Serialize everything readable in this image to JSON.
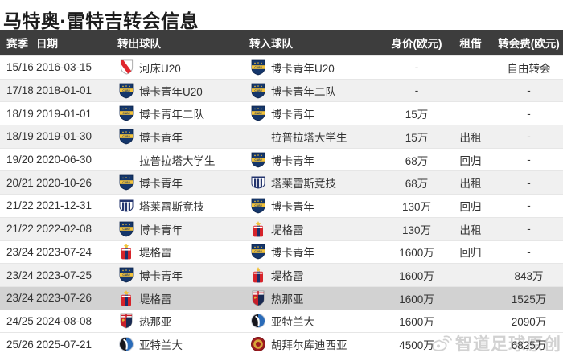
{
  "title": "马特奥·雷特吉转会信息",
  "columns": [
    "赛季",
    "日期",
    "转出球队",
    "转入球队",
    "身价(欧元)",
    "租借",
    "转会费(欧元)"
  ],
  "rows": [
    {
      "season": "15/16",
      "date": "2016-03-15",
      "from_team": "河床U20",
      "from_icon": "river-plate",
      "to_team": "博卡青年U20",
      "to_icon": "boca-juniors",
      "value": "-",
      "loan": "",
      "fee": "自由转会",
      "shade": "plain"
    },
    {
      "season": "17/18",
      "date": "2018-01-01",
      "from_team": "博卡青年U20",
      "from_icon": "boca-juniors",
      "to_team": "博卡青年二队",
      "to_icon": "boca-juniors",
      "value": "-",
      "loan": "",
      "fee": "-",
      "shade": "alt"
    },
    {
      "season": "18/19",
      "date": "2019-01-01",
      "from_team": "博卡青年二队",
      "from_icon": "boca-juniors",
      "to_team": "博卡青年",
      "to_icon": "boca-juniors",
      "value": "15万",
      "loan": "",
      "fee": "-",
      "shade": "plain"
    },
    {
      "season": "18/19",
      "date": "2019-01-30",
      "from_team": "博卡青年",
      "from_icon": "boca-juniors",
      "to_team": "拉普拉塔大学生",
      "to_icon": "none",
      "value": "15万",
      "loan": "出租",
      "fee": "-",
      "shade": "alt"
    },
    {
      "season": "19/20",
      "date": "2020-06-30",
      "from_team": "拉普拉塔大学生",
      "from_icon": "none",
      "to_team": "博卡青年",
      "to_icon": "boca-juniors",
      "value": "68万",
      "loan": "回归",
      "fee": "-",
      "shade": "plain"
    },
    {
      "season": "20/21",
      "date": "2020-10-26",
      "from_team": "博卡青年",
      "from_icon": "boca-juniors",
      "to_team": "塔莱雷斯竞技",
      "to_icon": "talleres",
      "value": "68万",
      "loan": "出租",
      "fee": "-",
      "shade": "alt"
    },
    {
      "season": "21/22",
      "date": "2021-12-31",
      "from_team": "塔莱雷斯竞技",
      "from_icon": "talleres",
      "to_team": "博卡青年",
      "to_icon": "boca-juniors",
      "value": "130万",
      "loan": "回归",
      "fee": "-",
      "shade": "plain"
    },
    {
      "season": "21/22",
      "date": "2022-02-08",
      "from_team": "博卡青年",
      "from_icon": "boca-juniors",
      "to_team": "堤格雷",
      "to_icon": "tigre",
      "value": "130万",
      "loan": "出租",
      "fee": "-",
      "shade": "alt"
    },
    {
      "season": "23/24",
      "date": "2023-07-24",
      "from_team": "堤格雷",
      "from_icon": "tigre",
      "to_team": "博卡青年",
      "to_icon": "boca-juniors",
      "value": "1600万",
      "loan": "回归",
      "fee": "-",
      "shade": "plain"
    },
    {
      "season": "23/24",
      "date": "2023-07-25",
      "from_team": "博卡青年",
      "from_icon": "boca-juniors",
      "to_team": "堤格雷",
      "to_icon": "tigre",
      "value": "1600万",
      "loan": "",
      "fee": "843万",
      "shade": "alt"
    },
    {
      "season": "23/24",
      "date": "2023-07-26",
      "from_team": "堤格雷",
      "from_icon": "tigre",
      "to_team": "热那亚",
      "to_icon": "genoa",
      "value": "1600万",
      "loan": "",
      "fee": "1525万",
      "shade": "selected"
    },
    {
      "season": "24/25",
      "date": "2024-08-08",
      "from_team": "热那亚",
      "from_icon": "genoa",
      "to_team": "亚特兰大",
      "to_icon": "atalanta",
      "value": "1600万",
      "loan": "",
      "fee": "2090万",
      "shade": "plain"
    },
    {
      "season": "25/26",
      "date": "2025-07-21",
      "from_team": "亚特兰大",
      "from_icon": "atalanta",
      "to_team": "胡拜尔库迪西亚",
      "to_icon": "al-qadsiah",
      "value": "4500万",
      "loan": "",
      "fee": "6825万",
      "shade": "plain"
    }
  ],
  "watermark": {
    "icon": "weibo-icon",
    "text": "智道足球原创"
  },
  "colors": {
    "header_bg": "#3d3d3d",
    "header_text": "#ffffff",
    "row_alt_bg": "#f0f0f0",
    "row_selected_bg": "#d2d2d2",
    "boca_navy": "#14366b",
    "boca_gold": "#f2c23a",
    "river_red": "#e0262d",
    "talleres_navy": "#24356e",
    "tigre_red": "#d6232a",
    "tigre_navy": "#1c2e6b",
    "genoa_red": "#c8202b",
    "genoa_navy": "#1a2a52",
    "atalanta_blue": "#2a6bb8",
    "atalanta_black": "#16161c",
    "alqadsiah_red": "#9e1b20",
    "alqadsiah_gold": "#d8a53a",
    "watermark_gray": "#c9c9c9"
  }
}
